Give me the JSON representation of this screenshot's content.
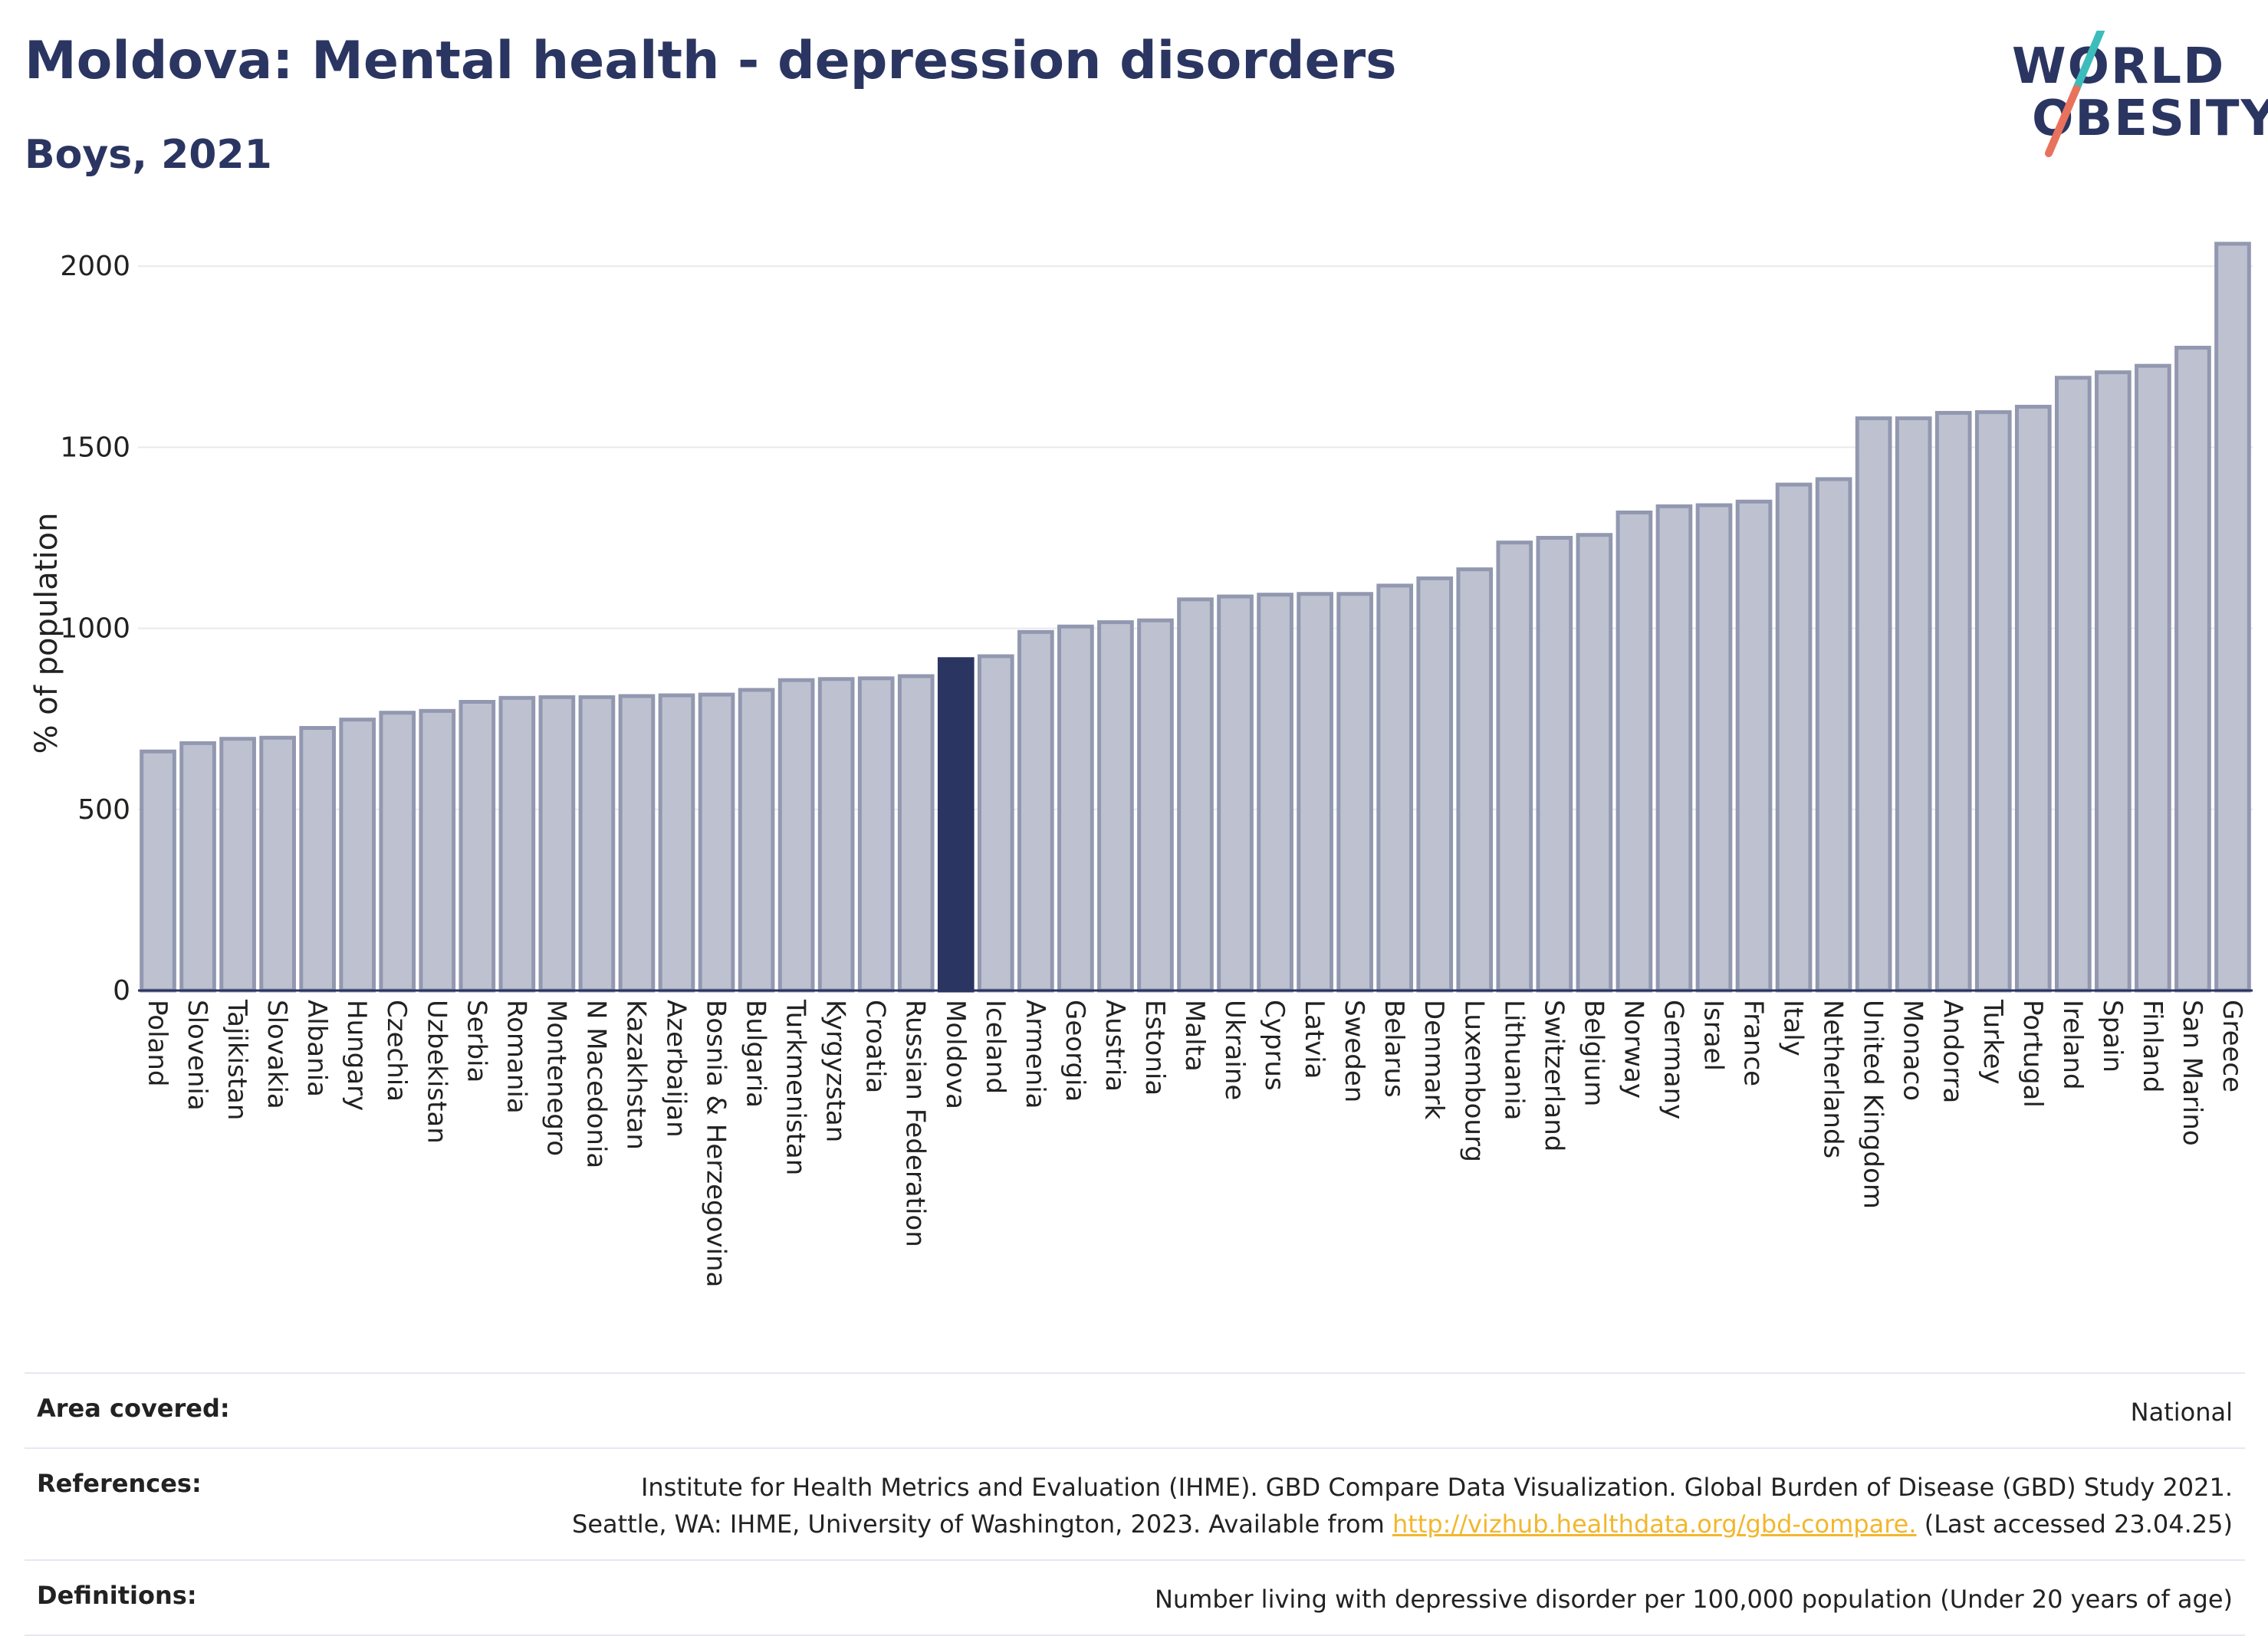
{
  "header": {
    "title": "Moldova: Mental health - depression disorders",
    "subtitle": "Boys, 2021"
  },
  "logo": {
    "line1": "WORLD",
    "line2": "OBESITY"
  },
  "colors": {
    "highlight": "#2b3561",
    "bar_fill": "#bec2d0",
    "bar_stroke": "#9298b0",
    "slash_teal": "#3dbcbc",
    "slash_coral": "#e8725c",
    "link": "#f2b72e"
  },
  "chart_data": {
    "type": "bar",
    "title": "Moldova: Mental health - depression disorders",
    "subtitle": "Boys, 2021",
    "ylabel": "% of population",
    "xlabel": "",
    "ylim": [
      0,
      2100
    ],
    "yticks": [
      0,
      500,
      1000,
      1500,
      2000
    ],
    "grid": true,
    "highlight": "Moldova",
    "categories": [
      "Poland",
      "Slovenia",
      "Tajikistan",
      "Slovakia",
      "Albania",
      "Hungary",
      "Czechia",
      "Uzbekistan",
      "Serbia",
      "Romania",
      "Montenegro",
      "N Macedonia",
      "Kazakhstan",
      "Azerbaijan",
      "Bosnia & Herzegovina",
      "Bulgaria",
      "Turkmenistan",
      "Kyrgyzstan",
      "Croatia",
      "Russian Federation",
      "Moldova",
      "Iceland",
      "Armenia",
      "Georgia",
      "Austria",
      "Estonia",
      "Malta",
      "Ukraine",
      "Cyprus",
      "Latvia",
      "Sweden",
      "Belarus",
      "Denmark",
      "Luxembourg",
      "Lithuania",
      "Switzerland",
      "Belgium",
      "Norway",
      "Germany",
      "Israel",
      "France",
      "Italy",
      "Netherlands",
      "United Kingdom",
      "Monaco",
      "Andorra",
      "Turkey",
      "Portugal",
      "Ireland",
      "Spain",
      "Finland",
      "San Marino",
      "Greece"
    ],
    "values": [
      660,
      683,
      695,
      698,
      725,
      748,
      767,
      772,
      797,
      808,
      810,
      810,
      813,
      815,
      817,
      830,
      857,
      860,
      862,
      868,
      915,
      923,
      990,
      1005,
      1017,
      1022,
      1080,
      1088,
      1093,
      1095,
      1095,
      1118,
      1138,
      1163,
      1237,
      1250,
      1258,
      1320,
      1337,
      1340,
      1350,
      1397,
      1412,
      1580,
      1580,
      1595,
      1597,
      1612,
      1692,
      1707,
      1725,
      1775,
      2062
    ]
  },
  "footer": {
    "area_label": "Area covered:",
    "area_value": "National",
    "ref_label": "References:",
    "ref_line1": "Institute for Health Metrics and Evaluation (IHME). GBD Compare Data Visualization. Global Burden of Disease (GBD) Study 2021.",
    "ref_line2_pre": "Seattle, WA: IHME, University of Washington, 2023. Available from",
    "ref_link": "http://vizhub.healthdata.org/gbd-compare.",
    "ref_line2_post": "(Last accessed 23.04.25)",
    "def_label": "Definitions:",
    "def_value": "Number living with depressive disorder per 100,000 population (Under 20 years of age)"
  }
}
